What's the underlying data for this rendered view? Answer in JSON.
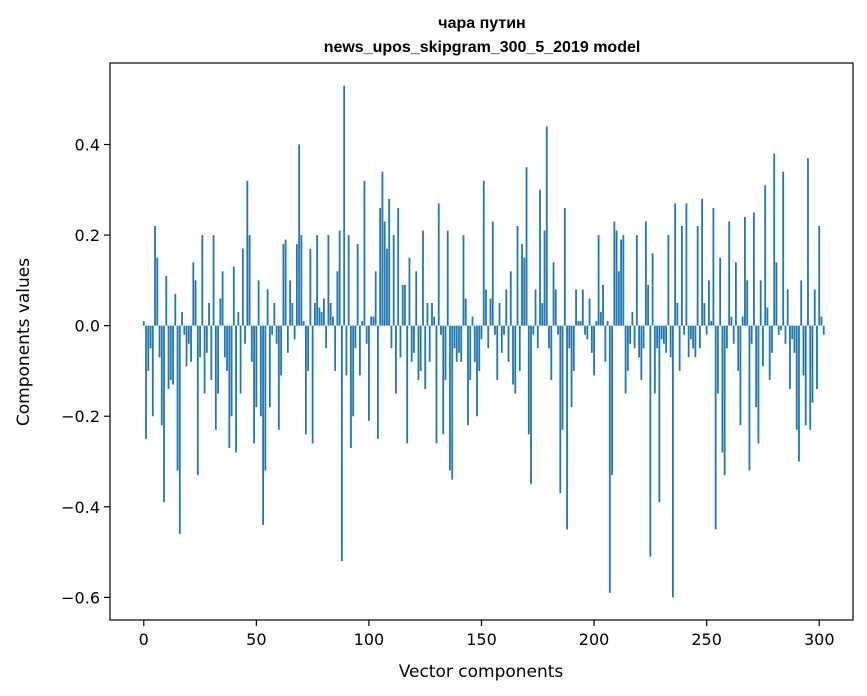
{
  "chart_data": {
    "type": "bar",
    "title_line1": "чара путин",
    "title_line2": "news_upos_skipgram_300_5_2019 model",
    "xlabel": "Vector components",
    "ylabel": "Components values",
    "xlim": [
      -15,
      315
    ],
    "ylim": [
      -0.65,
      0.58
    ],
    "xticks": [
      0,
      50,
      100,
      150,
      200,
      250,
      300
    ],
    "xtick_labels": [
      "0",
      "50",
      "100",
      "150",
      "200",
      "250",
      "300"
    ],
    "yticks": [
      0.4,
      0.2,
      0.0,
      -0.2,
      -0.4,
      -0.6
    ],
    "ytick_labels": [
      "0.4",
      "0.2",
      "0.0",
      "−0.2",
      "−0.4",
      "−0.6"
    ],
    "bar_color": "#1f77b4",
    "values": [
      0.01,
      -0.25,
      -0.1,
      -0.05,
      -0.2,
      0.22,
      0.15,
      -0.07,
      -0.22,
      -0.39,
      0.11,
      -0.14,
      -0.12,
      -0.13,
      0.07,
      -0.32,
      -0.46,
      0.03,
      -0.02,
      -0.09,
      -0.04,
      -0.08,
      0.14,
      0.1,
      -0.33,
      -0.07,
      0.2,
      -0.15,
      -0.06,
      0.05,
      -0.12,
      0.2,
      -0.23,
      -0.15,
      0.06,
      0.12,
      -0.07,
      -0.1,
      -0.27,
      -0.2,
      0.13,
      -0.28,
      0.03,
      -0.15,
      0.17,
      -0.04,
      0.32,
      0.2,
      -0.08,
      -0.26,
      -0.18,
      0.1,
      -0.2,
      -0.44,
      -0.32,
      0.08,
      -0.18,
      -0.02,
      0.05,
      -0.04,
      -0.23,
      -0.11,
      0.18,
      0.19,
      -0.06,
      0.1,
      0.05,
      -0.03,
      0.18,
      0.4,
      0.2,
      0.01,
      -0.24,
      -0.1,
      0.17,
      -0.26,
      0.05,
      0.2,
      0.04,
      0.03,
      0.06,
      -0.05,
      0.2,
      0.05,
      0.02,
      -0.1,
      0.12,
      0.21,
      -0.52,
      0.53,
      -0.11,
      0.2,
      -0.27,
      -0.2,
      -0.05,
      0.18,
      -0.11,
      0.01,
      0.32,
      -0.04,
      -0.21,
      0.02,
      0.02,
      0.12,
      -0.25,
      0.26,
      0.34,
      0.23,
      0.17,
      0.28,
      -0.05,
      0.2,
      -0.15,
      0.26,
      -0.07,
      0.09,
      0.09,
      -0.26,
      0.15,
      -0.08,
      -0.06,
      0.12,
      -0.12,
      -0.1,
      0.21,
      -0.14,
      0.05,
      -0.08,
      0.05,
      0.02,
      -0.26,
      0.27,
      -0.02,
      -0.24,
      -0.12,
      0.21,
      -0.32,
      -0.34,
      -0.05,
      -0.08,
      -0.06,
      -0.08,
      0.2,
      0.06,
      -0.22,
      -0.12,
      0.02,
      -0.08,
      -0.2,
      -0.1,
      -0.03,
      0.32,
      0.08,
      -0.05,
      0.06,
      0.23,
      -0.02,
      -0.12,
      0.05,
      -0.06,
      -0.02,
      0.08,
      -0.08,
      0.12,
      -0.13,
      -0.15,
      0.22,
      -0.1,
      0.18,
      0.15,
      0.35,
      -0.24,
      -0.35,
      -0.02,
      0.08,
      -0.05,
      0.3,
      0.05,
      0.21,
      0.44,
      -0.05,
      -0.12,
      0.14,
      0.08,
      -0.02,
      -0.37,
      -0.23,
      0.26,
      -0.45,
      -0.05,
      -0.18,
      -0.1,
      0.08,
      0.01,
      0.01,
      0.08,
      -0.02,
      -0.03,
      0.06,
      -0.06,
      -0.11,
      0.01,
      0.2,
      0.03,
      0.09,
      -0.08,
      0.01,
      -0.59,
      -0.33,
      0.23,
      0.21,
      0.12,
      0.19,
      0.2,
      -0.15,
      -0.1,
      -0.04,
      0.03,
      -0.05,
      0.2,
      -0.07,
      -0.12,
      -0.05,
      0.23,
      0.09,
      -0.51,
      0.16,
      -0.15,
      -0.05,
      -0.39,
      -0.03,
      -0.04,
      -0.06,
      0.2,
      -0.07,
      -0.6,
      0.27,
      0.05,
      -0.1,
      0.22,
      -0.02,
      0.27,
      -0.07,
      -0.03,
      -0.05,
      -0.07,
      0.22,
      -0.05,
      0.28,
      0.05,
      -0.02,
      0.1,
      0.01,
      0.26,
      -0.45,
      -0.15,
      0.15,
      -0.28,
      -0.33,
      -0.05,
      0.23,
      0.02,
      -0.04,
      0.14,
      -0.1,
      -0.22,
      0.02,
      0.24,
      0.1,
      -0.32,
      -0.04,
      0.25,
      -0.18,
      -0.26,
      0.1,
      -0.09,
      0.31,
      0.04,
      -0.12,
      -0.06,
      0.38,
      0.14,
      -0.02,
      -0.01,
      0.34,
      -0.04,
      0.08,
      -0.14,
      -0.03,
      -0.06,
      -0.23,
      -0.3,
      0.1,
      -0.11,
      -0.22,
      0.37,
      -0.23,
      -0.17,
      0.08,
      -0.14,
      0.22,
      0.02,
      -0.02
    ]
  }
}
